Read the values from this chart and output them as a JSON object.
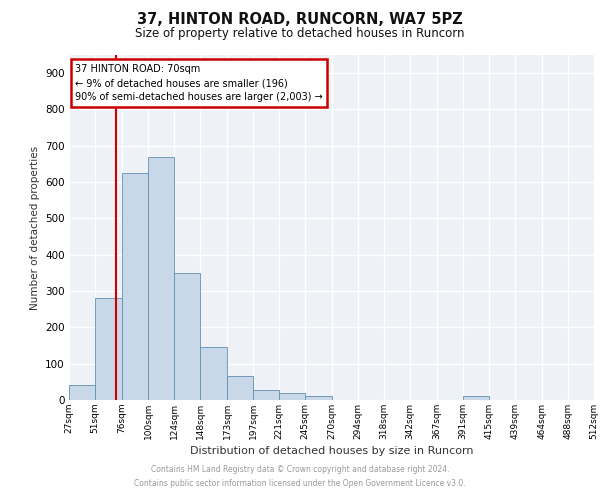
{
  "title1": "37, HINTON ROAD, RUNCORN, WA7 5PZ",
  "title2": "Size of property relative to detached houses in Runcorn",
  "xlabel": "Distribution of detached houses by size in Runcorn",
  "ylabel": "Number of detached properties",
  "footer1": "Contains HM Land Registry data © Crown copyright and database right 2024.",
  "footer2": "Contains public sector information licensed under the Open Government Licence v3.0.",
  "bin_labels": [
    "27sqm",
    "51sqm",
    "76sqm",
    "100sqm",
    "124sqm",
    "148sqm",
    "173sqm",
    "197sqm",
    "221sqm",
    "245sqm",
    "270sqm",
    "294sqm",
    "318sqm",
    "342sqm",
    "367sqm",
    "391sqm",
    "415sqm",
    "439sqm",
    "464sqm",
    "488sqm",
    "512sqm"
  ],
  "bar_heights": [
    40,
    280,
    625,
    670,
    350,
    145,
    65,
    28,
    18,
    12,
    0,
    0,
    0,
    0,
    0,
    10,
    0,
    0,
    0,
    0
  ],
  "bar_color": "#c8d8e8",
  "bar_edge_color": "#6090b0",
  "annotation_line1": "37 HINTON ROAD: 70sqm",
  "annotation_line2": "← 9% of detached houses are smaller (196)",
  "annotation_line3": "90% of semi-detached houses are larger (2,003) →",
  "property_size": 70,
  "ylim": [
    0,
    950
  ],
  "yticks": [
    0,
    100,
    200,
    300,
    400,
    500,
    600,
    700,
    800,
    900
  ],
  "background_color": "#eef2f6",
  "grid_color": "#ffffff",
  "box_color": "#cc0000",
  "label_vals": [
    27,
    51,
    76,
    100,
    124,
    148,
    173,
    197,
    221,
    245,
    270,
    294,
    318,
    342,
    367,
    391,
    415,
    439,
    464,
    488,
    512
  ]
}
